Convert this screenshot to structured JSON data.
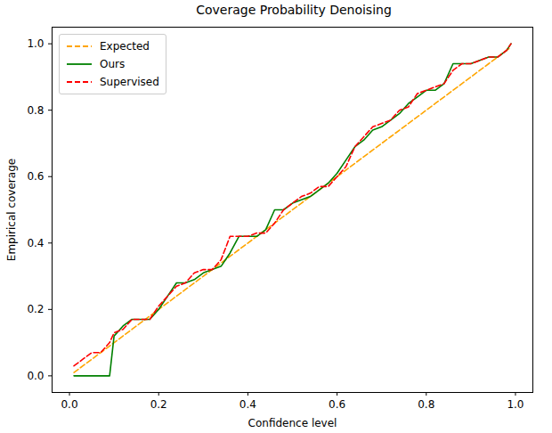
{
  "chart_data": {
    "type": "line",
    "title": "Coverage Probability Denoising",
    "x_label": "Confidence level",
    "y_label": "Empirical coverage",
    "x": [
      0.01,
      0.03,
      0.05,
      0.07,
      0.09,
      0.1,
      0.12,
      0.14,
      0.16,
      0.18,
      0.2,
      0.22,
      0.24,
      0.26,
      0.28,
      0.3,
      0.32,
      0.34,
      0.36,
      0.38,
      0.4,
      0.42,
      0.44,
      0.46,
      0.48,
      0.5,
      0.52,
      0.54,
      0.56,
      0.58,
      0.6,
      0.62,
      0.64,
      0.66,
      0.68,
      0.7,
      0.72,
      0.74,
      0.76,
      0.78,
      0.8,
      0.82,
      0.84,
      0.86,
      0.88,
      0.9,
      0.92,
      0.94,
      0.96,
      0.98,
      0.99
    ],
    "series": [
      {
        "name": "Expected",
        "color": "#ffa500",
        "line_style": "dashed",
        "values": [
          0.01,
          0.03,
          0.05,
          0.07,
          0.09,
          0.1,
          0.12,
          0.14,
          0.16,
          0.18,
          0.2,
          0.22,
          0.24,
          0.26,
          0.28,
          0.3,
          0.32,
          0.34,
          0.36,
          0.38,
          0.4,
          0.42,
          0.44,
          0.46,
          0.48,
          0.5,
          0.52,
          0.54,
          0.56,
          0.58,
          0.6,
          0.62,
          0.64,
          0.66,
          0.68,
          0.7,
          0.72,
          0.74,
          0.76,
          0.78,
          0.8,
          0.82,
          0.84,
          0.86,
          0.88,
          0.9,
          0.92,
          0.94,
          0.96,
          0.98,
          0.99
        ]
      },
      {
        "name": "Ours",
        "color": "#008000",
        "line_style": "solid",
        "values": [
          0,
          0,
          0,
          0,
          0,
          0.12,
          0.15,
          0.17,
          0.17,
          0.17,
          0.2,
          0.24,
          0.28,
          0.28,
          0.29,
          0.31,
          0.32,
          0.33,
          0.37,
          0.42,
          0.42,
          0.42,
          0.44,
          0.5,
          0.5,
          0.52,
          0.53,
          0.54,
          0.56,
          0.58,
          0.61,
          0.65,
          0.69,
          0.71,
          0.74,
          0.75,
          0.77,
          0.79,
          0.82,
          0.84,
          0.86,
          0.86,
          0.88,
          0.94,
          0.94,
          0.94,
          0.95,
          0.96,
          0.96,
          0.98,
          1.0
        ]
      },
      {
        "name": "Supervised",
        "color": "#ff0000",
        "line_style": "dashed",
        "values": [
          0.03,
          0.05,
          0.07,
          0.07,
          0.1,
          0.13,
          0.14,
          0.17,
          0.17,
          0.17,
          0.21,
          0.24,
          0.27,
          0.28,
          0.31,
          0.32,
          0.32,
          0.35,
          0.42,
          0.42,
          0.42,
          0.43,
          0.43,
          0.46,
          0.5,
          0.52,
          0.54,
          0.55,
          0.57,
          0.57,
          0.6,
          0.63,
          0.69,
          0.72,
          0.75,
          0.76,
          0.77,
          0.8,
          0.81,
          0.85,
          0.86,
          0.87,
          0.88,
          0.92,
          0.94,
          0.94,
          0.95,
          0.96,
          0.96,
          0.98,
          1.0
        ]
      }
    ],
    "xlim": [
      -0.039,
      1.039
    ],
    "ylim": [
      -0.05,
      1.05
    ],
    "xticks": [
      {
        "value": 0,
        "label": "0.0"
      },
      {
        "value": 0.2,
        "label": "0.2"
      },
      {
        "value": 0.4,
        "label": "0.4"
      },
      {
        "value": 0.6,
        "label": "0.6"
      },
      {
        "value": 0.8,
        "label": "0.8"
      },
      {
        "value": 1,
        "label": "1.0"
      }
    ],
    "yticks": [
      {
        "value": 0,
        "label": "0.0"
      },
      {
        "value": 0.2,
        "label": "0.2"
      },
      {
        "value": 0.4,
        "label": "0.4"
      },
      {
        "value": 0.6,
        "label": "0.6"
      },
      {
        "value": 0.8,
        "label": "0.8"
      },
      {
        "value": 1,
        "label": "1.0"
      }
    ],
    "grid": false,
    "legend": "upper left"
  }
}
